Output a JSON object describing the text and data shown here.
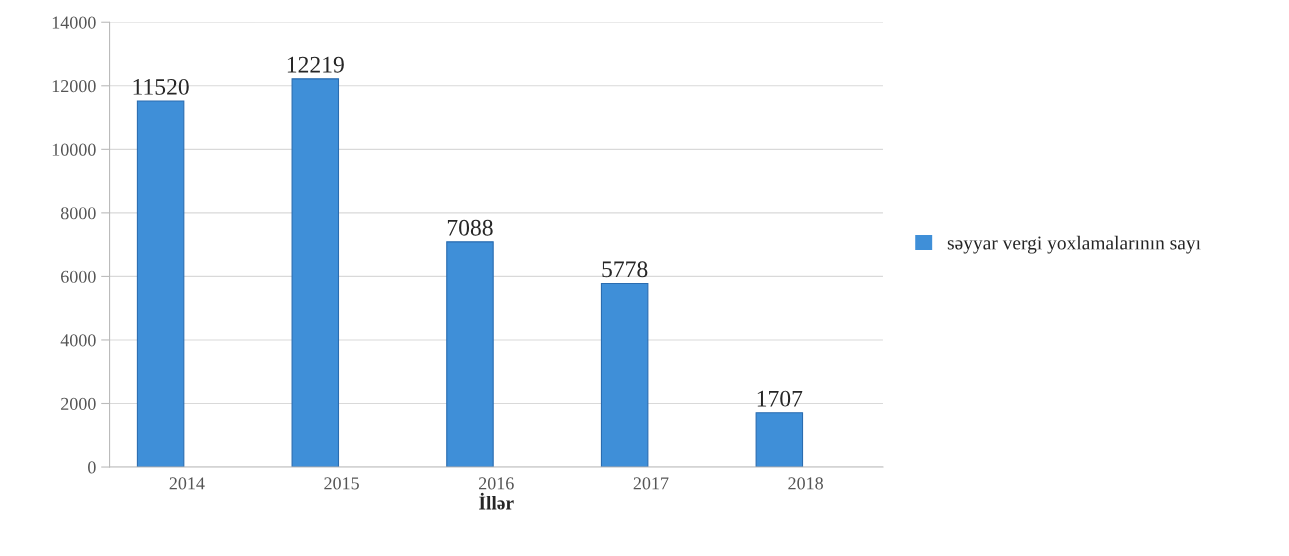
{
  "chart_data": {
    "type": "bar",
    "xlabel": "İllər",
    "categories": [
      "2014",
      "2015",
      "2016",
      "2017",
      "2018"
    ],
    "series": [
      {
        "name": "səyyar vergi yoxlamalarının sayı",
        "color": "#3f8fd8",
        "values": [
          11520,
          12219,
          7088,
          5778,
          1707
        ]
      }
    ],
    "ylim": [
      0,
      14000
    ],
    "yticks": [
      0,
      2000,
      4000,
      6000,
      8000,
      10000,
      12000,
      14000
    ],
    "grid": "y",
    "legend": "right",
    "data_labels": true
  }
}
